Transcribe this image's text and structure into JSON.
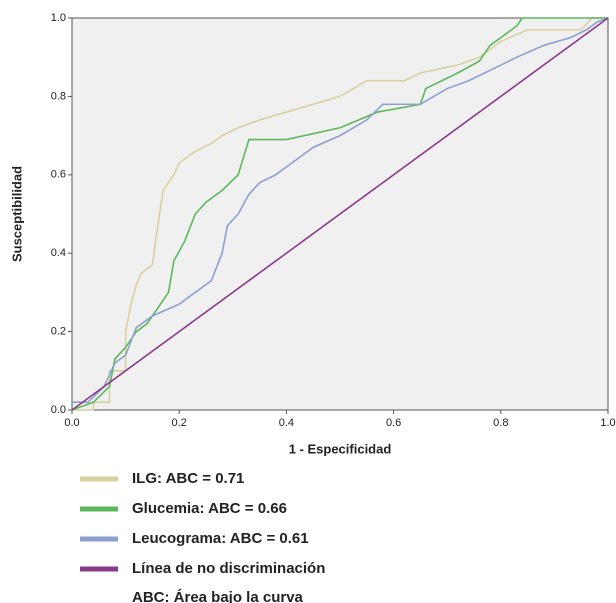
{
  "chart_data": {
    "type": "line",
    "x_label": "1 - Especificidad",
    "y_label": "Susceptibilidad",
    "xlim": [
      0,
      1
    ],
    "ylim": [
      0,
      1
    ],
    "xticks": [
      {
        "value": 0,
        "label": "0.0"
      },
      {
        "value": 0.2,
        "label": "0.2"
      },
      {
        "value": 0.4,
        "label": "0.4"
      },
      {
        "value": 0.6,
        "label": "0.6"
      },
      {
        "value": 0.8,
        "label": "0.8"
      },
      {
        "value": 1,
        "label": "1.0"
      }
    ],
    "yticks": [
      {
        "value": 0,
        "label": "0.0"
      },
      {
        "value": 0.2,
        "label": "0.2"
      },
      {
        "value": 0.4,
        "label": "0.4"
      },
      {
        "value": 0.6,
        "label": "0.6"
      },
      {
        "value": 0.8,
        "label": "0.8"
      },
      {
        "value": 1,
        "label": "1.0"
      }
    ],
    "series": [
      {
        "name": "ILG: ABC = 0.71",
        "color": "#d9d09e",
        "x": [
          0,
          0.04,
          0.04,
          0.07,
          0.07,
          0.1,
          0.1,
          0.11,
          0.12,
          0.13,
          0.15,
          0.16,
          0.17,
          0.18,
          0.19,
          0.2,
          0.23,
          0.26,
          0.28,
          0.31,
          0.35,
          0.4,
          0.45,
          0.5,
          0.55,
          0.62,
          0.65,
          0.72,
          0.76,
          0.8,
          0.85,
          0.95,
          0.97,
          1
        ],
        "values": [
          0,
          0,
          0.02,
          0.02,
          0.1,
          0.1,
          0.2,
          0.27,
          0.32,
          0.35,
          0.37,
          0.47,
          0.56,
          0.58,
          0.6,
          0.63,
          0.66,
          0.68,
          0.7,
          0.72,
          0.74,
          0.76,
          0.78,
          0.8,
          0.84,
          0.84,
          0.86,
          0.88,
          0.9,
          0.94,
          0.97,
          0.97,
          1,
          1
        ]
      },
      {
        "name": "Glucemia: ABC = 0.66",
        "color": "#5cb85c",
        "x": [
          0,
          0.04,
          0.07,
          0.08,
          0.1,
          0.12,
          0.14,
          0.18,
          0.19,
          0.21,
          0.23,
          0.25,
          0.28,
          0.31,
          0.33,
          0.4,
          0.5,
          0.57,
          0.65,
          0.66,
          0.72,
          0.76,
          0.78,
          0.8,
          0.83,
          0.84,
          1
        ],
        "values": [
          0,
          0.02,
          0.06,
          0.13,
          0.16,
          0.2,
          0.22,
          0.3,
          0.38,
          0.43,
          0.5,
          0.53,
          0.56,
          0.6,
          0.69,
          0.69,
          0.72,
          0.76,
          0.78,
          0.82,
          0.86,
          0.89,
          0.93,
          0.95,
          0.98,
          1,
          1
        ]
      },
      {
        "name": "Leucograma: ABC = 0.61",
        "color": "#8d9fd1",
        "x": [
          0,
          0.03,
          0.06,
          0.08,
          0.1,
          0.12,
          0.15,
          0.2,
          0.22,
          0.26,
          0.28,
          0.29,
          0.31,
          0.33,
          0.35,
          0.38,
          0.42,
          0.45,
          0.5,
          0.55,
          0.58,
          0.65,
          0.7,
          0.74,
          0.8,
          0.83,
          0.88,
          0.93,
          0.96,
          0.98,
          1
        ],
        "values": [
          0.02,
          0.02,
          0.06,
          0.12,
          0.14,
          0.21,
          0.24,
          0.27,
          0.29,
          0.33,
          0.4,
          0.47,
          0.5,
          0.55,
          0.58,
          0.6,
          0.64,
          0.67,
          0.7,
          0.74,
          0.78,
          0.78,
          0.82,
          0.84,
          0.88,
          0.9,
          0.93,
          0.95,
          0.97,
          0.99,
          1
        ]
      },
      {
        "name": "Línea de no discriminación",
        "color": "#8b3a8b",
        "x": [
          0,
          1
        ],
        "values": [
          0,
          1
        ]
      }
    ],
    "annotation": "ABC: Área bajo la curva"
  }
}
